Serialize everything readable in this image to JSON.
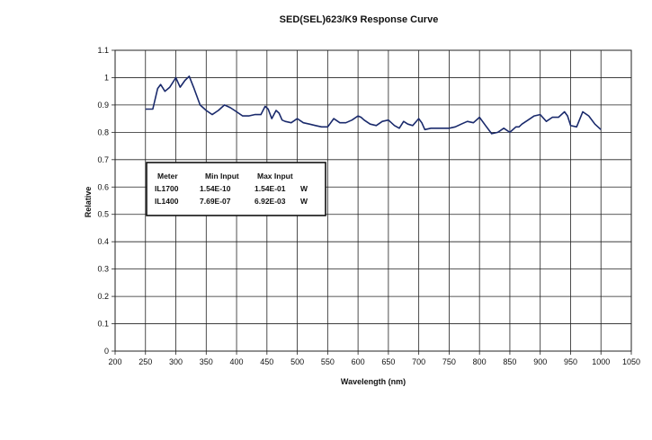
{
  "chart_data": {
    "type": "line",
    "title": "SED(SEL)623/K9 Response Curve",
    "xlabel": "Wavelength (nm)",
    "ylabel": "Relative",
    "xlim": [
      200,
      1050
    ],
    "ylim": [
      0,
      1.1
    ],
    "x_ticks": [
      200,
      250,
      300,
      350,
      400,
      450,
      500,
      550,
      600,
      650,
      700,
      750,
      800,
      850,
      900,
      950,
      1000,
      1050
    ],
    "y_ticks": [
      "0",
      "0.1",
      "0.2",
      "0.3",
      "0.4",
      "0.5",
      "0.6",
      "0.7",
      "0.8",
      "0.9",
      "1",
      "1.1"
    ],
    "grid": true,
    "line_color": "#1a2a6c",
    "series": [
      {
        "x": [
          250,
          262,
          270,
          275,
          282,
          290,
          300,
          307,
          315,
          322,
          330,
          340,
          350,
          360,
          370,
          380,
          390,
          400,
          410,
          420,
          430,
          440,
          447,
          452,
          458,
          465,
          470,
          475,
          480,
          490,
          500,
          510,
          520,
          530,
          540,
          550,
          560,
          570,
          580,
          590,
          600,
          605,
          610,
          620,
          630,
          640,
          650,
          660,
          668,
          675,
          682,
          690,
          700,
          705,
          710,
          720,
          730,
          740,
          750,
          760,
          770,
          780,
          790,
          800,
          810,
          820,
          830,
          840,
          850,
          860,
          865,
          870,
          880,
          890,
          900,
          910,
          920,
          930,
          940,
          945,
          950,
          960,
          970,
          980,
          990,
          1000
        ],
        "y": [
          0.885,
          0.885,
          0.96,
          0.975,
          0.95,
          0.965,
          1.0,
          0.965,
          0.99,
          1.005,
          0.96,
          0.9,
          0.88,
          0.865,
          0.88,
          0.9,
          0.89,
          0.875,
          0.86,
          0.86,
          0.865,
          0.865,
          0.895,
          0.885,
          0.85,
          0.88,
          0.87,
          0.845,
          0.84,
          0.835,
          0.85,
          0.835,
          0.83,
          0.825,
          0.82,
          0.82,
          0.85,
          0.835,
          0.835,
          0.845,
          0.86,
          0.855,
          0.845,
          0.83,
          0.825,
          0.84,
          0.845,
          0.825,
          0.815,
          0.84,
          0.83,
          0.825,
          0.85,
          0.835,
          0.81,
          0.815,
          0.815,
          0.815,
          0.815,
          0.82,
          0.83,
          0.84,
          0.835,
          0.855,
          0.825,
          0.795,
          0.8,
          0.815,
          0.8,
          0.82,
          0.82,
          0.83,
          0.845,
          0.86,
          0.865,
          0.84,
          0.855,
          0.855,
          0.875,
          0.86,
          0.825,
          0.82,
          0.875,
          0.86,
          0.83,
          0.81
        ]
      }
    ],
    "table": {
      "headers": [
        "Meter",
        "Min Input",
        "Max Input"
      ],
      "rows": [
        [
          "IL1700",
          "1.54E-10",
          "1.54E-01",
          "W"
        ],
        [
          "IL1400",
          "7.69E-07",
          "6.92E-03",
          "W"
        ]
      ]
    }
  }
}
